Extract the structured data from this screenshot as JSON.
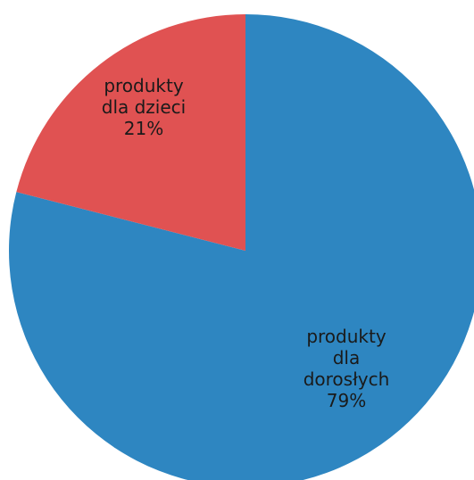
{
  "chart_data": {
    "type": "pie",
    "start": "top",
    "direction": "clockwise",
    "slices": [
      {
        "label_lines": [
          "produkty",
          "dla",
          "dorosłych",
          "79%"
        ],
        "value": 79,
        "color": "#2e86c1"
      },
      {
        "label_lines": [
          "produkty",
          "dla dzieci",
          "21%"
        ],
        "value": 21,
        "color": "#e05252"
      }
    ]
  }
}
